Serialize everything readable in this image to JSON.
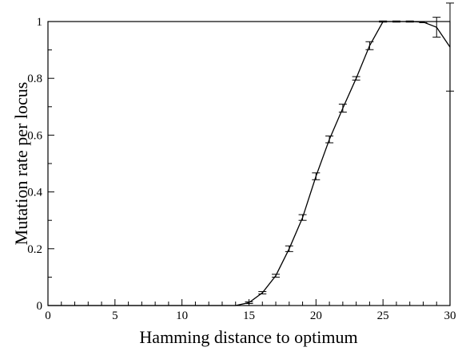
{
  "chart_data": {
    "type": "line",
    "title": "",
    "xlabel": "Hamming distance to optimum",
    "ylabel": "Mutation rate per locus",
    "xlim": [
      0,
      30
    ],
    "ylim": [
      0,
      1
    ],
    "x_ticks": [
      "0",
      "5",
      "10",
      "15",
      "20",
      "25",
      "30"
    ],
    "y_ticks": [
      "0",
      "0.2",
      "0.4",
      "0.6",
      "0.8",
      "1"
    ],
    "grid": false,
    "legend": "none",
    "series": [
      {
        "x": [
          0,
          1,
          2,
          3,
          4,
          5,
          6,
          7,
          8,
          9,
          10,
          11,
          12,
          13,
          14,
          15,
          16,
          17,
          18,
          19,
          20,
          21,
          22,
          23,
          24,
          25,
          26,
          27,
          28,
          29,
          30
        ],
        "y": [
          0,
          0,
          0,
          0,
          0,
          0,
          0,
          0,
          0,
          0,
          0,
          0,
          0,
          0,
          0,
          0.01,
          0.045,
          0.105,
          0.2,
          0.31,
          0.455,
          0.585,
          0.695,
          0.8,
          0.915,
          1.0,
          1.0,
          1.0,
          0.998,
          0.98,
          0.91
        ],
        "error": [
          0,
          0,
          0,
          0,
          0,
          0,
          0,
          0,
          0,
          0,
          0,
          0,
          0,
          0,
          0,
          0.003,
          0.004,
          0.005,
          0.01,
          0.01,
          0.012,
          0.012,
          0.014,
          0.006,
          0.014,
          0.002,
          0.002,
          0.002,
          0.002,
          0.035,
          0.155
        ]
      }
    ]
  }
}
